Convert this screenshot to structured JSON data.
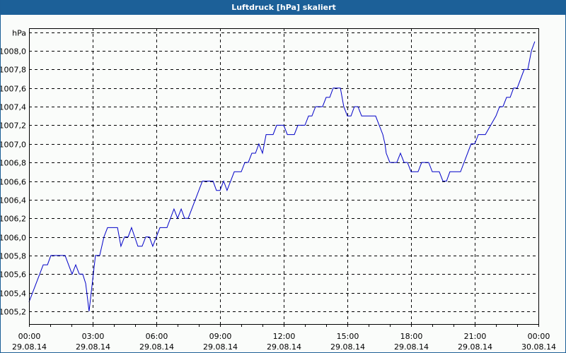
{
  "window": {
    "title": "Luftdruck [hPa] skaliert"
  },
  "colors": {
    "titlebar": "#1c6098",
    "frame_border": "#1c5f96",
    "background": "#fafcfa",
    "line": "#0000c8",
    "axis": "#000000",
    "grid": "#000000"
  },
  "chart_data": {
    "type": "line",
    "title": "Luftdruck [hPa] skaliert",
    "xlabel": "",
    "ylabel": "hPa",
    "unit_label": "hPa",
    "xlim_hours": [
      0,
      24
    ],
    "ylim": [
      1005.05,
      1008.25
    ],
    "grid": true,
    "legend": null,
    "y_ticks": [
      {
        "value": 1005.2,
        "label": "1005,2"
      },
      {
        "value": 1005.4,
        "label": "1005,4"
      },
      {
        "value": 1005.6,
        "label": "1005,6"
      },
      {
        "value": 1005.8,
        "label": "1005,8"
      },
      {
        "value": 1006.0,
        "label": "1006,0"
      },
      {
        "value": 1006.2,
        "label": "1006,2"
      },
      {
        "value": 1006.4,
        "label": "1006,4"
      },
      {
        "value": 1006.6,
        "label": "1006,6"
      },
      {
        "value": 1006.8,
        "label": "1006,8"
      },
      {
        "value": 1007.0,
        "label": "1007,0"
      },
      {
        "value": 1007.2,
        "label": "1007,2"
      },
      {
        "value": 1007.4,
        "label": "1007,4"
      },
      {
        "value": 1007.6,
        "label": "1007,6"
      },
      {
        "value": 1007.8,
        "label": "1007,8"
      },
      {
        "value": 1008.0,
        "label": "1008,0"
      },
      {
        "value": 1008.2,
        "label": "hPa"
      }
    ],
    "x_ticks": [
      {
        "hour": 0,
        "time": "00:00",
        "date": "29.08.14"
      },
      {
        "hour": 3,
        "time": "03:00",
        "date": "29.08.14"
      },
      {
        "hour": 6,
        "time": "06:00",
        "date": "29.08.14"
      },
      {
        "hour": 9,
        "time": "09:00",
        "date": "29.08.14"
      },
      {
        "hour": 12,
        "time": "12:00",
        "date": "29.08.14"
      },
      {
        "hour": 15,
        "time": "15:00",
        "date": "29.08.14"
      },
      {
        "hour": 18,
        "time": "18:00",
        "date": "29.08.14"
      },
      {
        "hour": 21,
        "time": "21:00",
        "date": "29.08.14"
      },
      {
        "hour": 24,
        "time": "00:00",
        "date": "30.08.14"
      }
    ],
    "minor_tick_interval_hours": 1,
    "series": [
      {
        "name": "Luftdruck",
        "x_hours": [
          0.0,
          0.67,
          0.87,
          1.03,
          1.7,
          2.03,
          2.2,
          2.37,
          2.53,
          2.67,
          2.83,
          3.13,
          3.33,
          3.53,
          3.7,
          4.17,
          4.33,
          4.5,
          4.67,
          4.83,
          5.13,
          5.33,
          5.5,
          5.67,
          5.83,
          6.17,
          6.5,
          6.83,
          7.0,
          7.17,
          7.33,
          7.5,
          8.17,
          8.67,
          8.83,
          9.0,
          9.17,
          9.33,
          9.67,
          10.0,
          10.17,
          10.33,
          10.5,
          10.67,
          10.83,
          11.0,
          11.17,
          11.5,
          11.67,
          12.0,
          12.17,
          12.5,
          12.67,
          13.0,
          13.17,
          13.33,
          13.5,
          13.83,
          14.0,
          14.17,
          14.33,
          14.67,
          14.83,
          15.0,
          15.17,
          15.33,
          15.5,
          15.67,
          16.33,
          16.5,
          16.67,
          16.77,
          16.83,
          17.0,
          17.33,
          17.5,
          17.67,
          17.83,
          18.0,
          18.33,
          18.5,
          18.83,
          19.0,
          19.33,
          19.5,
          19.67,
          19.83,
          20.33,
          20.83,
          21.0,
          21.17,
          21.5,
          22.0,
          22.17,
          22.33,
          22.5,
          22.67,
          22.83,
          23.0,
          23.33,
          23.5,
          23.67,
          23.83
        ],
        "values": [
          1005.3,
          1005.7,
          1005.7,
          1005.8,
          1005.8,
          1005.6,
          1005.7,
          1005.6,
          1005.6,
          1005.5,
          1005.2,
          1005.8,
          1005.8,
          1006.0,
          1006.1,
          1006.1,
          1005.9,
          1006.0,
          1006.0,
          1006.1,
          1005.9,
          1005.9,
          1006.0,
          1006.0,
          1005.9,
          1006.1,
          1006.1,
          1006.3,
          1006.2,
          1006.3,
          1006.2,
          1006.2,
          1006.6,
          1006.6,
          1006.5,
          1006.5,
          1006.6,
          1006.5,
          1006.7,
          1006.7,
          1006.8,
          1006.8,
          1006.9,
          1006.9,
          1007.0,
          1006.9,
          1007.1,
          1007.1,
          1007.2,
          1007.2,
          1007.1,
          1007.1,
          1007.2,
          1007.2,
          1007.3,
          1007.3,
          1007.4,
          1007.4,
          1007.5,
          1007.5,
          1007.6,
          1007.6,
          1007.4,
          1007.3,
          1007.3,
          1007.4,
          1007.4,
          1007.3,
          1007.3,
          1007.2,
          1007.1,
          1007.0,
          1006.9,
          1006.8,
          1006.8,
          1006.9,
          1006.8,
          1006.8,
          1006.7,
          1006.7,
          1006.8,
          1006.8,
          1006.7,
          1006.7,
          1006.6,
          1006.6,
          1006.7,
          1006.7,
          1007.0,
          1007.0,
          1007.1,
          1007.1,
          1007.3,
          1007.4,
          1007.4,
          1007.5,
          1007.5,
          1007.6,
          1007.6,
          1007.8,
          1007.8,
          1008.0,
          1008.1
        ]
      }
    ]
  }
}
